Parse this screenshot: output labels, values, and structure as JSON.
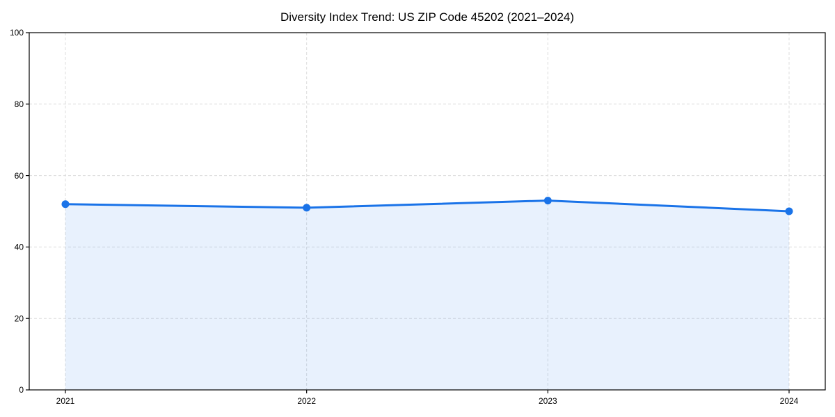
{
  "chart_data": {
    "type": "area",
    "title": "Diversity Index Trend: US ZIP Code 45202 (2021–2024)",
    "x": [
      2021,
      2022,
      2023,
      2024
    ],
    "x_tick_labels": [
      "2021",
      "2022",
      "2023",
      "2024"
    ],
    "yticks": [
      0,
      20,
      40,
      60,
      80,
      100
    ],
    "y_tick_labels": [
      "0",
      "20",
      "40",
      "60",
      "80",
      "100"
    ],
    "series": [
      {
        "name": "Diversity Index",
        "values": [
          52,
          51,
          53,
          50
        ]
      }
    ],
    "xlabel": "",
    "ylabel": "",
    "xlim": [
      2020.85,
      2024.15
    ],
    "ylim": [
      0,
      100
    ],
    "grid": "dashed-both-axes",
    "legend": "none",
    "marker": "circle",
    "colors": {
      "line": "#1a73e8",
      "marker": "#1a73e8",
      "fill": "rgba(26,115,232,0.10)",
      "grid": "#dcdcdc",
      "axis_border": "#000000",
      "text": "#000000",
      "background": "#ffffff"
    }
  }
}
